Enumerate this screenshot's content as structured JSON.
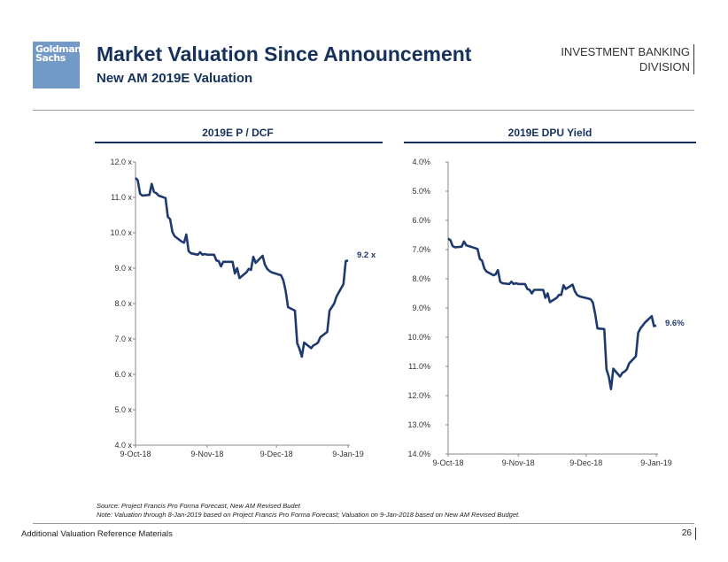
{
  "header": {
    "logo_line1": "Goldman",
    "logo_line2": "Sachs",
    "title": "Market Valuation Since Announcement",
    "subtitle": "New AM 2019E Valuation",
    "division_line1": "INVESTMENT BANKING",
    "division_line2": "DIVISION"
  },
  "colors": {
    "line": "#1f3a6e",
    "title": "#16325c",
    "logo": "#7399c6"
  },
  "chart_data": [
    {
      "type": "line",
      "title": "2019E P / DCF",
      "xlabel": "",
      "ylabel": "",
      "ylim": [
        4.0,
        12.0
      ],
      "yticks": [
        "12.0 x",
        "11.0 x",
        "10.0 x",
        "9.0 x",
        "8.0 x",
        "7.0 x",
        "6.0 x",
        "5.0 x",
        "4.0 x"
      ],
      "ytick_values": [
        12,
        11,
        10,
        9,
        8,
        7,
        6,
        5,
        4
      ],
      "xticks": [
        "9-Oct-18",
        "9-Nov-18",
        "9-Dec-18",
        "9-Jan-19"
      ],
      "xtick_days": [
        0,
        31,
        61,
        92
      ],
      "end_label": "9.2 x",
      "series": [
        {
          "name": "2019E P / DCF",
          "x_days": [
            0,
            1,
            2,
            3,
            6,
            7,
            8,
            9,
            10,
            13,
            14,
            15,
            16,
            17,
            20,
            21,
            22,
            23,
            24,
            27,
            28,
            29,
            30,
            31,
            34,
            35,
            36,
            37,
            38,
            41,
            42,
            43,
            44,
            45,
            48,
            49,
            50,
            51,
            52,
            55,
            56,
            57,
            58,
            59,
            62,
            63,
            64,
            65,
            66,
            69,
            70,
            71,
            72,
            73,
            76,
            77,
            78,
            79,
            80,
            83,
            84,
            85,
            86,
            87,
            90,
            91,
            92
          ],
          "values": [
            11.55,
            11.48,
            11.1,
            11.05,
            11.07,
            11.38,
            11.15,
            11.12,
            11.05,
            10.98,
            10.45,
            10.38,
            10.02,
            9.9,
            9.75,
            9.72,
            9.95,
            9.48,
            9.42,
            9.38,
            9.45,
            9.38,
            9.4,
            9.38,
            9.38,
            9.22,
            9.2,
            9.05,
            9.18,
            9.18,
            9.18,
            8.85,
            9.0,
            8.72,
            8.88,
            8.98,
            8.95,
            9.32,
            9.15,
            9.35,
            9.1,
            8.98,
            8.92,
            8.88,
            8.82,
            8.8,
            8.65,
            8.35,
            7.9,
            7.8,
            6.88,
            6.72,
            6.5,
            6.9,
            6.74,
            6.82,
            6.85,
            6.9,
            7.05,
            7.2,
            7.8,
            7.9,
            8.0,
            8.2,
            8.55,
            9.2,
            9.22
          ]
        }
      ]
    },
    {
      "type": "line",
      "title": "2019E DPU Yield",
      "xlabel": "",
      "ylabel": "",
      "ylim": [
        4.0,
        14.0
      ],
      "y_inverted": true,
      "yticks": [
        "4.0%",
        "5.0%",
        "6.0%",
        "7.0%",
        "8.0%",
        "9.0%",
        "10.0%",
        "11.0%",
        "12.0%",
        "13.0%",
        "14.0%"
      ],
      "ytick_values": [
        4,
        5,
        6,
        7,
        8,
        9,
        10,
        11,
        12,
        13,
        14
      ],
      "xticks": [
        "9-Oct-18",
        "9-Nov-18",
        "9-Dec-18",
        "9-Jan-19"
      ],
      "xtick_days": [
        0,
        31,
        61,
        92
      ],
      "end_label": "9.6%",
      "series": [
        {
          "name": "2019E DPU Yield",
          "x_days": [
            0,
            1,
            2,
            3,
            6,
            7,
            8,
            9,
            10,
            13,
            14,
            15,
            16,
            17,
            20,
            21,
            22,
            23,
            24,
            27,
            28,
            29,
            30,
            31,
            34,
            35,
            36,
            37,
            38,
            41,
            42,
            43,
            44,
            45,
            48,
            49,
            50,
            51,
            52,
            55,
            56,
            57,
            58,
            59,
            62,
            63,
            64,
            65,
            66,
            69,
            70,
            71,
            72,
            73,
            76,
            77,
            78,
            79,
            80,
            83,
            84,
            85,
            86,
            87,
            90,
            91,
            92
          ],
          "values": [
            6.62,
            6.68,
            6.88,
            6.92,
            6.9,
            6.72,
            6.85,
            6.88,
            6.9,
            6.98,
            7.32,
            7.38,
            7.65,
            7.75,
            7.88,
            7.85,
            7.7,
            8.1,
            8.15,
            8.18,
            8.1,
            8.18,
            8.15,
            8.18,
            8.18,
            8.35,
            8.38,
            8.5,
            8.38,
            8.38,
            8.38,
            8.65,
            8.5,
            8.8,
            8.65,
            8.55,
            8.55,
            8.22,
            8.35,
            8.2,
            8.42,
            8.55,
            8.6,
            8.62,
            8.68,
            8.7,
            8.82,
            9.2,
            9.7,
            9.72,
            11.1,
            11.35,
            11.78,
            11.08,
            11.35,
            11.22,
            11.18,
            11.1,
            10.9,
            10.65,
            9.85,
            9.7,
            9.6,
            9.5,
            9.28,
            9.62,
            9.6
          ]
        }
      ]
    }
  ],
  "notes": {
    "source": "Source: Project Francis Pro Forma Forecast, New AM Revised Budet",
    "note": "Note: Valuation through 8-Jan-2019 based on Project Francis Pro Forma Forecast; Valuation on 9-Jan-2018 based on New AM Revised Budget."
  },
  "footer": {
    "section": "Additional Valuation Reference Materials",
    "page": "26"
  }
}
